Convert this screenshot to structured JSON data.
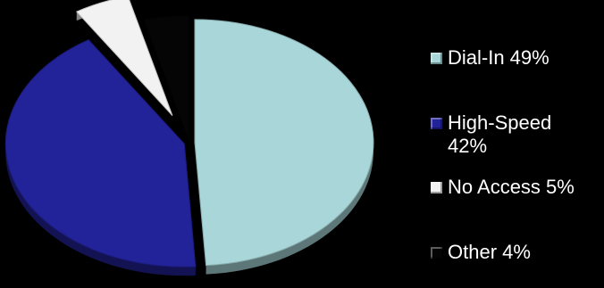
{
  "chart_data": {
    "type": "pie",
    "title": "",
    "categories": [
      "Dial-In",
      "High-Speed",
      "No Access",
      "Other"
    ],
    "values": [
      49,
      42,
      5,
      4
    ],
    "colors": [
      "#a9d6d8",
      "#222299",
      "#f2f2f2",
      "#050505"
    ],
    "exploded": [
      "No Access"
    ],
    "three_d": true,
    "legend_position": "right",
    "legend": [
      {
        "label": "Dial-In 49%",
        "color": "#a9d6d8"
      },
      {
        "label": "High-Speed 42%",
        "color": "#222299"
      },
      {
        "label": "No Access 5%",
        "color": "#f2f2f2"
      },
      {
        "label": "Other 4%",
        "color": "#050505"
      }
    ]
  }
}
